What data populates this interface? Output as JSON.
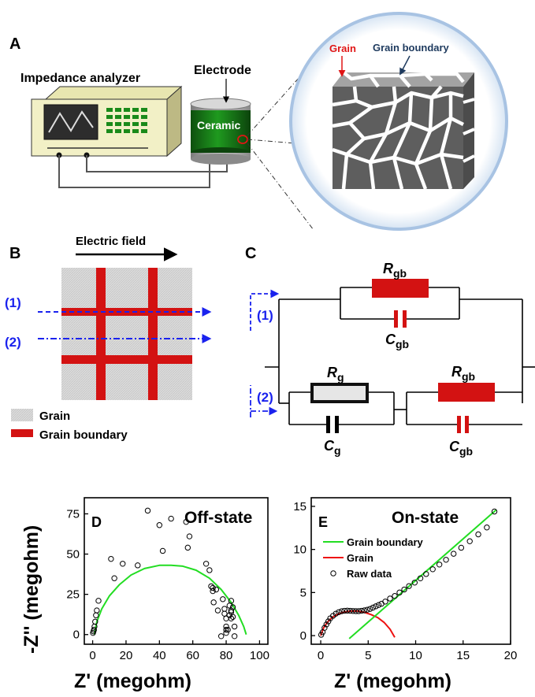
{
  "panel_a": {
    "letter": "A",
    "impedance_label": "Impedance analyzer",
    "electrode_label": "Electrode",
    "ceramic_label": "Ceramic",
    "grain_label": "Grain",
    "grain_boundary_label": "Grain boundary"
  },
  "panel_b": {
    "letter": "B",
    "field_label": "Electric field",
    "path1": "(1)",
    "path2": "(2)",
    "legend_grain": "Grain",
    "legend_gb": "Grain boundary"
  },
  "panel_c": {
    "letter": "C",
    "path1": "(1)",
    "path2": "(2)",
    "r_symbol": "R",
    "c_symbol": "C",
    "sub_gb": "gb",
    "sub_g": "g"
  },
  "chart_data": [
    {
      "panel": "D",
      "type": "scatter",
      "title": "Off-state",
      "xlabel": "Z' (megohm)",
      "ylabel": "-Z'' (megohm)",
      "xlim": [
        -5,
        105
      ],
      "ylim": [
        -6,
        85
      ],
      "xticks": [
        0,
        20,
        40,
        60,
        80,
        100
      ],
      "yticks": [
        0,
        25,
        50,
        75
      ],
      "series": [
        {
          "style": "open-circle",
          "x": [
            0.2,
            0.5,
            0.8,
            1.1,
            1.5,
            2,
            2.5,
            3.5,
            13,
            11,
            18,
            27,
            33,
            40,
            42,
            47,
            56,
            58,
            57,
            68,
            70,
            71,
            72,
            74,
            72,
            72.5,
            75,
            78,
            79,
            79,
            80,
            80,
            81,
            83,
            82,
            83,
            83,
            82,
            83,
            84,
            84,
            85,
            80,
            80,
            77,
            85
          ],
          "y": [
            1,
            2,
            3,
            5,
            8,
            12,
            15,
            21,
            35,
            47,
            44,
            43,
            77,
            68,
            52,
            72,
            70,
            61,
            54,
            44,
            40,
            30,
            29,
            28,
            27,
            20,
            15,
            22,
            16,
            13,
            10,
            5,
            3,
            21,
            18,
            15,
            14,
            12,
            10,
            17,
            11,
            5,
            3,
            1,
            -1,
            -1
          ]
        },
        {
          "style": "line",
          "color": "#22dd22",
          "x": [
            1,
            2.5,
            5.5,
            10,
            16,
            23,
            31,
            40,
            47,
            54,
            62,
            70,
            77,
            83,
            87.5,
            90.5,
            92
          ],
          "y": [
            0,
            8,
            16,
            24,
            31,
            37,
            41,
            43,
            43,
            42.5,
            40,
            35,
            28,
            20,
            12,
            5,
            0
          ]
        }
      ]
    },
    {
      "panel": "E",
      "type": "scatter",
      "title": "On-state",
      "xlabel": "Z' (megohm)",
      "ylabel": "",
      "xlim": [
        -1,
        20
      ],
      "ylim": [
        -1,
        16
      ],
      "xticks": [
        0,
        5,
        10,
        15,
        20
      ],
      "yticks": [
        0,
        5,
        10,
        15
      ],
      "legend": [
        {
          "name": "Grain boundary",
          "color": "#22dd22",
          "style": "line"
        },
        {
          "name": "Grain",
          "color": "#ee1111",
          "style": "line"
        },
        {
          "name": "Raw data",
          "color": "#000000",
          "style": "open-circle"
        }
      ],
      "series": [
        {
          "name": "Raw data",
          "x": [
            0.05,
            0.2,
            0.4,
            0.6,
            0.8,
            1.0,
            1.3,
            1.6,
            1.9,
            2.2,
            2.5,
            2.8,
            3.1,
            3.4,
            3.7,
            4.0,
            4.3,
            4.6,
            4.9,
            5.2,
            5.5,
            5.8,
            6.1,
            6.4,
            6.8,
            7.3,
            7.8,
            8.3,
            8.8,
            9.3,
            9.9,
            10.5,
            11.1,
            11.8,
            12.5,
            13.2,
            14.0,
            14.8,
            15.7,
            16.6,
            17.5,
            18.3
          ],
          "y": [
            0.1,
            0.4,
            0.9,
            1.3,
            1.65,
            2.0,
            2.3,
            2.55,
            2.72,
            2.83,
            2.88,
            2.9,
            2.88,
            2.86,
            2.84,
            2.84,
            2.88,
            2.93,
            3.0,
            3.1,
            3.25,
            3.4,
            3.55,
            3.7,
            3.95,
            4.3,
            4.6,
            5.0,
            5.35,
            5.75,
            6.15,
            6.65,
            7.15,
            7.7,
            8.25,
            8.8,
            9.5,
            10.2,
            10.95,
            11.75,
            12.55,
            14.4
          ]
        },
        {
          "name": "Grain",
          "x": [
            0,
            0.3,
            0.7,
            1.2,
            1.8,
            2.5,
            3.2,
            3.9,
            4.6,
            5.3,
            6.0,
            6.7,
            7.3,
            7.8
          ],
          "y": [
            0,
            0.9,
            1.55,
            2.1,
            2.5,
            2.75,
            2.85,
            2.85,
            2.7,
            2.45,
            2.1,
            1.5,
            0.75,
            -0.2
          ]
        },
        {
          "name": "Grain boundary",
          "x": [
            3.0,
            18.5
          ],
          "y": [
            -0.35,
            14.6
          ]
        }
      ]
    }
  ]
}
